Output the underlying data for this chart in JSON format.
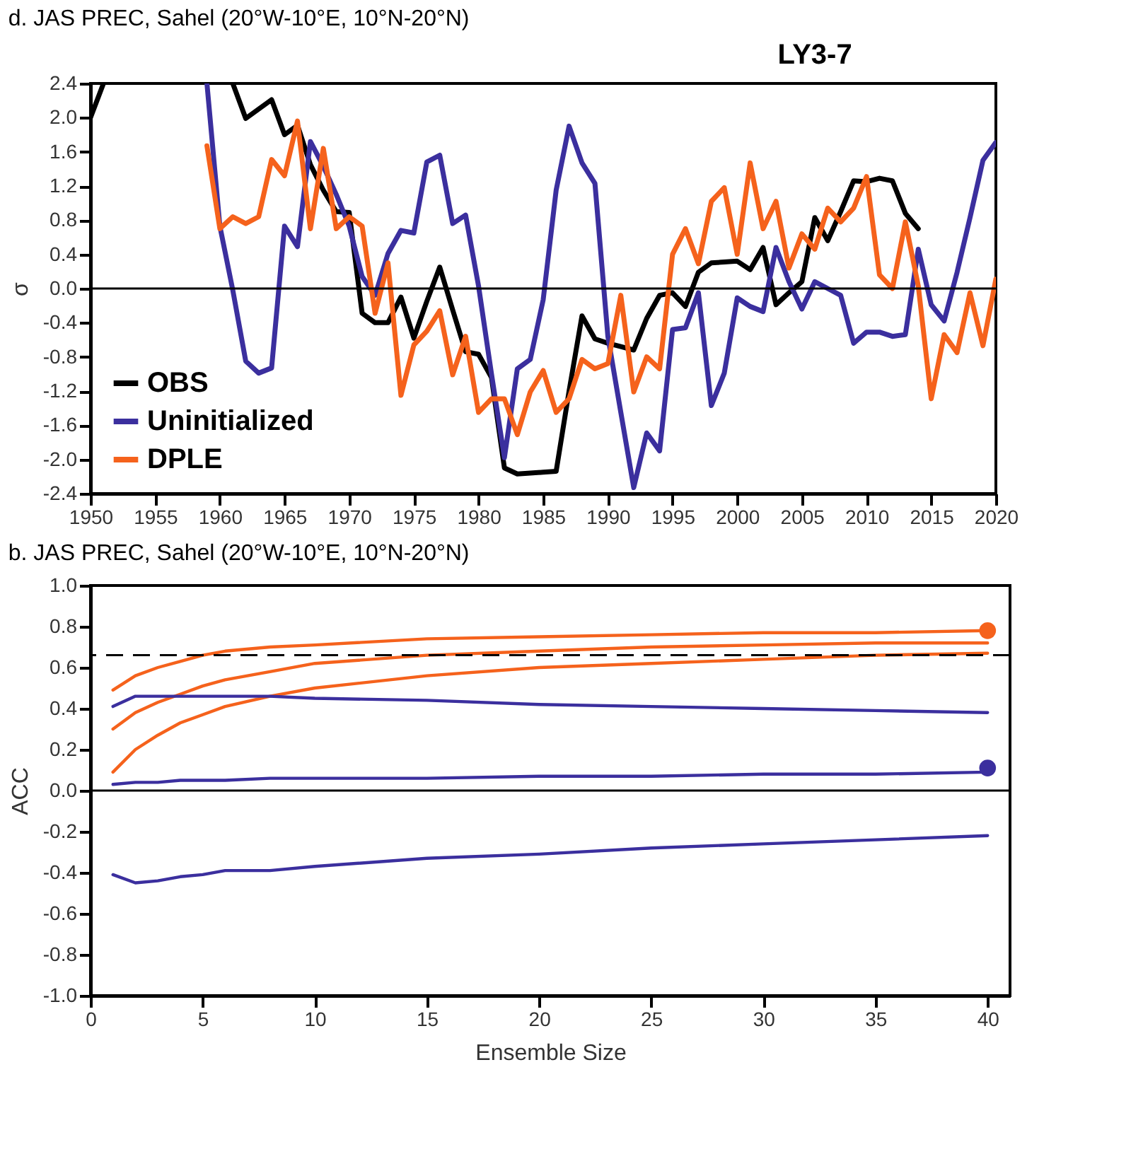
{
  "chart_data": [
    {
      "type": "line",
      "title": "d. JAS PREC, Sahel (20°W-10°E, 10°N-20°N)",
      "ylabel": "σ",
      "annotations": [
        "LY3-7"
      ],
      "xlim": [
        1950,
        2020
      ],
      "xticks": [
        1950,
        1955,
        1960,
        1965,
        1970,
        1975,
        1980,
        1985,
        1990,
        1995,
        2000,
        2005,
        2010,
        2015,
        2020
      ],
      "ylim": [
        -2.4,
        2.4
      ],
      "yticks": [
        -2.4,
        {
          "value": -2,
          "label": "-2.0"
        },
        -1.6,
        -1.2,
        -0.8,
        -0.4,
        {
          "value": 0,
          "label": "0.0"
        },
        0.4,
        0.8,
        1.2,
        1.6,
        {
          "value": 2,
          "label": "2.0"
        },
        2.4
      ],
      "grid": false,
      "legend": "bottom left",
      "line_style": "solid",
      "ref_lines": [
        {
          "axis": "y",
          "value": 0,
          "color": "#000000"
        }
      ],
      "series": [
        {
          "name": "OBS",
          "color": "#000000",
          "x": [
            1950,
            1951,
            1952,
            1953,
            1954,
            1955,
            1956,
            1957,
            1958,
            1959,
            1960,
            1961,
            1962,
            1963,
            1964,
            1965,
            1966,
            1967,
            1968,
            1969,
            1970,
            1971,
            1972,
            1973,
            1974,
            1975,
            1976,
            1977,
            1978,
            1979,
            1980,
            1981,
            1982,
            1983,
            1984,
            1985,
            1986,
            1987,
            1988,
            1989,
            1990,
            1991,
            1992,
            1993,
            1994,
            1995,
            1996,
            1997,
            1998,
            1999,
            2000,
            2001,
            2002,
            2003,
            2004,
            2005,
            2006,
            2007,
            2008,
            2009,
            2010,
            2011,
            2012,
            2013,
            2014
          ],
          "values": [
            2.0,
            2.4,
            null,
            null,
            null,
            null,
            null,
            null,
            null,
            null,
            null,
            2.4,
            1.99,
            2.1,
            2.21,
            1.8,
            1.91,
            1.45,
            1.15,
            0.9,
            0.89,
            -0.29,
            -0.4,
            -0.4,
            -0.1,
            -0.58,
            -0.15,
            0.25,
            -0.25,
            -0.74,
            -0.77,
            -1.04,
            -2.1,
            -2.17,
            -2.16,
            -2.15,
            -2.14,
            -1.2,
            -0.32,
            -0.59,
            -0.64,
            -0.68,
            -0.72,
            -0.35,
            -0.08,
            -0.05,
            -0.21,
            0.19,
            0.3,
            0.31,
            0.32,
            0.22,
            0.48,
            -0.19,
            -0.05,
            0.08,
            0.83,
            0.56,
            0.9,
            1.26,
            1.25,
            1.29,
            1.26,
            0.88,
            0.7
          ]
        },
        {
          "name": "Uninitialized",
          "color": "#3b2f9e",
          "x": [
            1959,
            1960,
            1961,
            1962,
            1963,
            1964,
            1965,
            1966,
            1967,
            1968,
            1969,
            1970,
            1971,
            1972,
            1973,
            1974,
            1975,
            1976,
            1977,
            1978,
            1979,
            1980,
            1981,
            1982,
            1983,
            1984,
            1985,
            1986,
            1987,
            1988,
            1989,
            1990,
            1991,
            1992,
            1993,
            1994,
            1995,
            1996,
            1997,
            1998,
            1999,
            2000,
            2001,
            2002,
            2003,
            2004,
            2005,
            2006,
            2007,
            2008,
            2009,
            2010,
            2011,
            2012,
            2013,
            2014,
            2015,
            2016,
            2017,
            2018,
            2019,
            2020
          ],
          "values": [
            2.4,
            0.73,
            -0.02,
            -0.85,
            -0.99,
            -0.93,
            0.73,
            0.49,
            1.72,
            1.43,
            1.1,
            0.73,
            0.14,
            -0.08,
            0.41,
            0.68,
            0.65,
            1.48,
            1.56,
            0.76,
            0.86,
            0.03,
            -1.0,
            -1.98,
            -0.94,
            -0.83,
            -0.13,
            1.15,
            1.9,
            1.47,
            1.23,
            -0.56,
            -1.45,
            -2.33,
            -1.69,
            -1.9,
            -0.48,
            -0.46,
            -0.05,
            -1.37,
            -0.99,
            -0.11,
            -0.21,
            -0.27,
            0.48,
            0.08,
            -0.24,
            0.08,
            0.0,
            -0.08,
            -0.64,
            -0.51,
            -0.51,
            -0.56,
            -0.54,
            0.46,
            -0.19,
            -0.38,
            0.19,
            0.83,
            1.5,
            1.71
          ]
        },
        {
          "name": "DPLE",
          "color": "#f5621c",
          "x": [
            1959,
            1960,
            1961,
            1962,
            1963,
            1964,
            1965,
            1966,
            1967,
            1968,
            1969,
            1970,
            1971,
            1972,
            1973,
            1974,
            1975,
            1976,
            1977,
            1978,
            1979,
            1980,
            1981,
            1982,
            1983,
            1984,
            1985,
            1986,
            1987,
            1988,
            1989,
            1990,
            1991,
            1992,
            1993,
            1994,
            1995,
            1996,
            1997,
            1998,
            1999,
            2000,
            2001,
            2002,
            2003,
            2004,
            2005,
            2006,
            2007,
            2008,
            2009,
            2010,
            2011,
            2012,
            2013,
            2014,
            2015,
            2016,
            2017,
            2018,
            2019,
            2020
          ],
          "values": [
            1.67,
            0.7,
            0.84,
            0.76,
            0.84,
            1.51,
            1.32,
            1.96,
            0.7,
            1.64,
            0.7,
            0.84,
            0.73,
            -0.29,
            0.3,
            -1.25,
            -0.66,
            -0.5,
            -0.26,
            -1.01,
            -0.56,
            -1.45,
            -1.29,
            -1.29,
            -1.71,
            -1.21,
            -0.96,
            -1.45,
            -1.29,
            -0.83,
            -0.94,
            -0.88,
            -0.08,
            -1.21,
            -0.8,
            -0.94,
            0.4,
            0.7,
            0.29,
            1.02,
            1.18,
            0.4,
            1.47,
            0.7,
            1.02,
            0.24,
            0.64,
            0.46,
            0.94,
            0.78,
            0.94,
            1.31,
            0.16,
            0.0,
            0.78,
            0.03,
            -1.29,
            -0.54,
            -0.75,
            -0.05,
            -0.67,
            0.11
          ]
        }
      ]
    },
    {
      "type": "line",
      "title": "b. JAS PREC, Sahel (20°W-10°E, 10°N-20°N)",
      "xlabel": "Ensemble Size",
      "ylabel": "ACC",
      "x": [
        1,
        2,
        3,
        4,
        5,
        6,
        8,
        10,
        15,
        20,
        25,
        30,
        35,
        40
      ],
      "xlim": [
        0,
        41
      ],
      "xticks": [
        0,
        5,
        10,
        15,
        20,
        25,
        30,
        35,
        40
      ],
      "ylim": [
        -1,
        1
      ],
      "yticks": [
        {
          "value": -1,
          "label": "-1.0"
        },
        -0.8,
        -0.6,
        -0.4,
        -0.2,
        {
          "value": 0,
          "label": "0.0"
        },
        0.2,
        0.4,
        0.6,
        0.8,
        {
          "value": 1,
          "label": "1.0"
        }
      ],
      "grid": false,
      "line_style": "solid",
      "ref_lines": [
        {
          "axis": "y",
          "value": 0,
          "color": "#000000"
        },
        {
          "axis": "y",
          "value": 0.66,
          "color": "#000000",
          "line_style": "dashed"
        }
      ],
      "series": [
        {
          "color": "#f5621c",
          "values": [
            0.3,
            0.38,
            0.43,
            0.47,
            0.51,
            0.54,
            0.58,
            0.62,
            0.66,
            0.68,
            0.7,
            0.71,
            0.72,
            0.72
          ]
        },
        {
          "color": "#f5621c",
          "values": [
            0.09,
            0.2,
            0.27,
            0.33,
            0.37,
            0.41,
            0.46,
            0.5,
            0.56,
            0.6,
            0.62,
            0.64,
            0.66,
            0.67
          ]
        },
        {
          "color": "#f5621c",
          "values": [
            0.49,
            0.56,
            0.6,
            0.63,
            0.66,
            0.68,
            0.7,
            0.71,
            0.74,
            0.75,
            0.76,
            0.77,
            0.77,
            0.78
          ]
        },
        {
          "color": "#3b2f9e",
          "values": [
            0.03,
            0.04,
            0.04,
            0.05,
            0.05,
            0.05,
            0.06,
            0.06,
            0.06,
            0.07,
            0.07,
            0.08,
            0.08,
            0.09
          ]
        },
        {
          "color": "#3b2f9e",
          "values": [
            -0.41,
            -0.45,
            -0.44,
            -0.42,
            -0.41,
            -0.39,
            -0.39,
            -0.37,
            -0.33,
            -0.31,
            -0.28,
            -0.26,
            -0.24,
            -0.22
          ]
        },
        {
          "color": "#3b2f9e",
          "values": [
            0.41,
            0.46,
            0.46,
            0.46,
            0.46,
            0.46,
            0.46,
            0.45,
            0.44,
            0.42,
            0.41,
            0.4,
            0.39,
            0.38
          ]
        },
        {
          "type": "scatter",
          "color": "#f5621c",
          "marker": "circle",
          "x": [
            40
          ],
          "values": [
            0.78
          ]
        },
        {
          "type": "scatter",
          "color": "#3b2f9e",
          "marker": "circle",
          "x": [
            40
          ],
          "values": [
            0.11
          ]
        }
      ]
    }
  ]
}
